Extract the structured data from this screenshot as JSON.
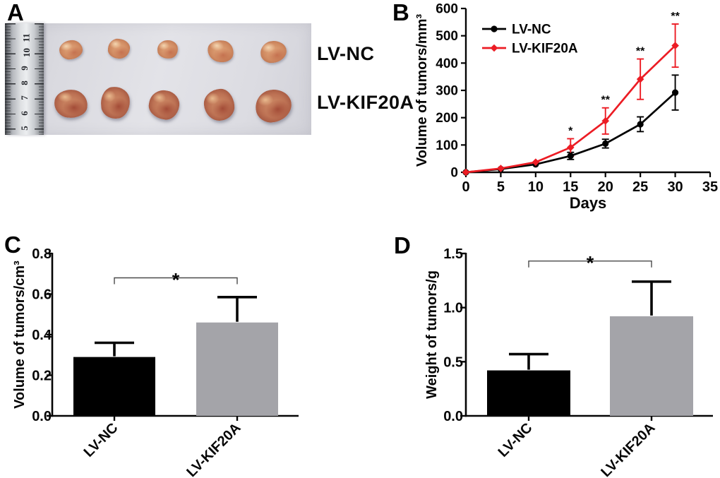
{
  "panels": {
    "a": {
      "label": "A",
      "type": "photograph",
      "description": "Excised xenograft tumors beside a centimeter ruler",
      "ruler_numbers": [
        "11",
        "10",
        "9",
        "8",
        "7",
        "6",
        "5"
      ],
      "rows": [
        {
          "label": "LV-NC",
          "tumor_count": 5
        },
        {
          "label": "LV-KIF20A",
          "tumor_count": 5
        }
      ]
    },
    "b": {
      "label": "B"
    },
    "c": {
      "label": "C"
    },
    "d": {
      "label": "D"
    }
  },
  "chart_data": [
    {
      "panel": "B",
      "type": "line",
      "title": "",
      "xlabel": "Days",
      "ylabel": "Volume of tumors/mm³",
      "x": [
        0,
        5,
        10,
        15,
        20,
        25,
        30
      ],
      "xlim": [
        0,
        35
      ],
      "ylim": [
        0,
        600
      ],
      "xticks": [
        0,
        5,
        10,
        15,
        20,
        25,
        30,
        35
      ],
      "xtick_labels": [
        "0",
        "5",
        "10",
        "15",
        "20",
        "25",
        "30",
        "35"
      ],
      "yticks": [
        0,
        100,
        200,
        300,
        400,
        500,
        600
      ],
      "ytick_labels": [
        "0",
        "100",
        "200",
        "300",
        "400",
        "500",
        "600"
      ],
      "grid": false,
      "legend_position": "inside top-left",
      "series": [
        {
          "name": "LV-NC",
          "color": "#000000",
          "marker": "circle",
          "values": [
            0,
            12,
            29,
            60,
            105,
            176,
            292
          ],
          "errors": [
            0,
            0,
            0,
            13,
            16,
            27,
            64
          ]
        },
        {
          "name": "LV-KIF20A",
          "color": "#EC1C24",
          "marker": "diamond",
          "values": [
            0,
            14,
            37,
            91,
            188,
            341,
            464
          ],
          "errors": [
            0,
            0,
            0,
            32,
            48,
            74,
            79
          ]
        }
      ],
      "annotations": [
        {
          "x": 15,
          "text": "*"
        },
        {
          "x": 20,
          "text": "**"
        },
        {
          "x": 25,
          "text": "**"
        },
        {
          "x": 30,
          "text": "**"
        }
      ]
    },
    {
      "panel": "C",
      "type": "bar",
      "title": "",
      "xlabel": "",
      "ylabel": "Volume of tumors/cm³",
      "categories": [
        "LV-NC",
        "LV-KIF20A"
      ],
      "values": [
        0.29,
        0.46
      ],
      "errors": [
        0.07,
        0.125
      ],
      "bar_colors": [
        "#000000",
        "#A4A4A9"
      ],
      "ylim": [
        0,
        0.8
      ],
      "yticks": [
        0,
        0.2,
        0.4,
        0.6,
        0.8
      ],
      "ytick_labels": [
        "0.0",
        "0.2",
        "0.4",
        "0.6",
        "0.8"
      ],
      "grid": false,
      "significance": {
        "text": "*",
        "y": 0.68,
        "between": [
          0,
          1
        ]
      }
    },
    {
      "panel": "D",
      "type": "bar",
      "title": "",
      "xlabel": "",
      "ylabel": "Weight of tumors/g",
      "categories": [
        "LV-NC",
        "LV-KIF20A"
      ],
      "values": [
        0.42,
        0.92
      ],
      "errors": [
        0.15,
        0.32
      ],
      "bar_colors": [
        "#000000",
        "#A4A4A9"
      ],
      "ylim": [
        0,
        1.5
      ],
      "yticks": [
        0,
        0.5,
        1.0,
        1.5
      ],
      "ytick_labels": [
        "0.0",
        "0.5",
        "1.0",
        "1.5"
      ],
      "grid": false,
      "significance": {
        "text": "*",
        "y": 1.43,
        "between": [
          0,
          1
        ]
      }
    }
  ]
}
